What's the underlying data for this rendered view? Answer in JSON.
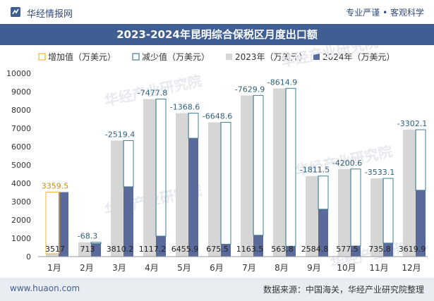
{
  "header": {
    "brand": "华经情报网",
    "tagline": "专业严谨 • 客观科学",
    "logo_icon": "brand-logo-icon"
  },
  "footer": {
    "site": "www.huaon.com",
    "source": "数据来源：中国海关，华经产业研究院整理"
  },
  "watermark": "华经产业研究院",
  "colors": {
    "header_bar": "#3f5f93",
    "bar_2023": "#d6d6d6",
    "bar_2024": "#5a6a9a",
    "increase_outline": "#f2b630",
    "decrease_outline": "#3f7f97",
    "footer_bg": "#e9edf2"
  },
  "chart_data": {
    "type": "bar",
    "title": "2023-2024年昆明综合保税区月度出口额",
    "categories": [
      "1月",
      "2月",
      "3月",
      "4月",
      "5月",
      "6月",
      "7月",
      "8月",
      "9月",
      "10月",
      "11月",
      "12月"
    ],
    "series": [
      {
        "name": "2023年（万美元）",
        "values": [
          157.5,
          781.3,
          6329.6,
          8595.0,
          7824.5,
          7324.1,
          8793.4,
          9178.7,
          4396.3,
          4778.1,
          4268.1,
          6922.0
        ]
      },
      {
        "name": "2024年（万美元）",
        "values": [
          3517,
          713,
          3810.2,
          1117.2,
          6455.9,
          675.5,
          1163.5,
          563.8,
          2584.8,
          577.5,
          735.8,
          3619.9
        ]
      }
    ],
    "changes": [
      {
        "type": "增加值",
        "value": 3359.5
      },
      {
        "type": "减少值",
        "value": -68.3
      },
      {
        "type": "减少值",
        "value": -2519.4
      },
      {
        "type": "减少值",
        "value": -7477.8
      },
      {
        "type": "减少值",
        "value": -1368.6
      },
      {
        "type": "减少值",
        "value": -6648.6
      },
      {
        "type": "减少值",
        "value": -7629.9
      },
      {
        "type": "减少值",
        "value": -8614.9
      },
      {
        "type": "减少值",
        "value": -1811.5
      },
      {
        "type": "减少值",
        "value": -4200.6
      },
      {
        "type": "减少值",
        "value": -3533.1
      },
      {
        "type": "减少值",
        "value": -3302.1
      }
    ],
    "change_labels": [
      "3359.5",
      "-68.3",
      "-2519.4",
      "-7477.8",
      "-1368.6",
      "-6648.6",
      "-7629.9",
      "-8614.9",
      "-1811.5",
      "-4200.6",
      "-3533.1",
      "-3302.1"
    ],
    "value_labels_2024": [
      "3517",
      "713",
      "3810.2",
      "1117.2",
      "6455.9",
      "675.5",
      "1163.5",
      "563.8",
      "2584.8",
      "577.5",
      "735.8",
      "3619.9"
    ],
    "legend": [
      "增加值（万美元）",
      "减少值（万美元）",
      "2023年（万美元）",
      "2024年（万美元）"
    ],
    "legend_position": "top",
    "y_ticks": [
      "0",
      "1000",
      "2000",
      "3000",
      "4000",
      "5000",
      "6000",
      "7000",
      "8000",
      "9000",
      "10000"
    ],
    "ylim": [
      0,
      10000
    ],
    "grid": false
  }
}
